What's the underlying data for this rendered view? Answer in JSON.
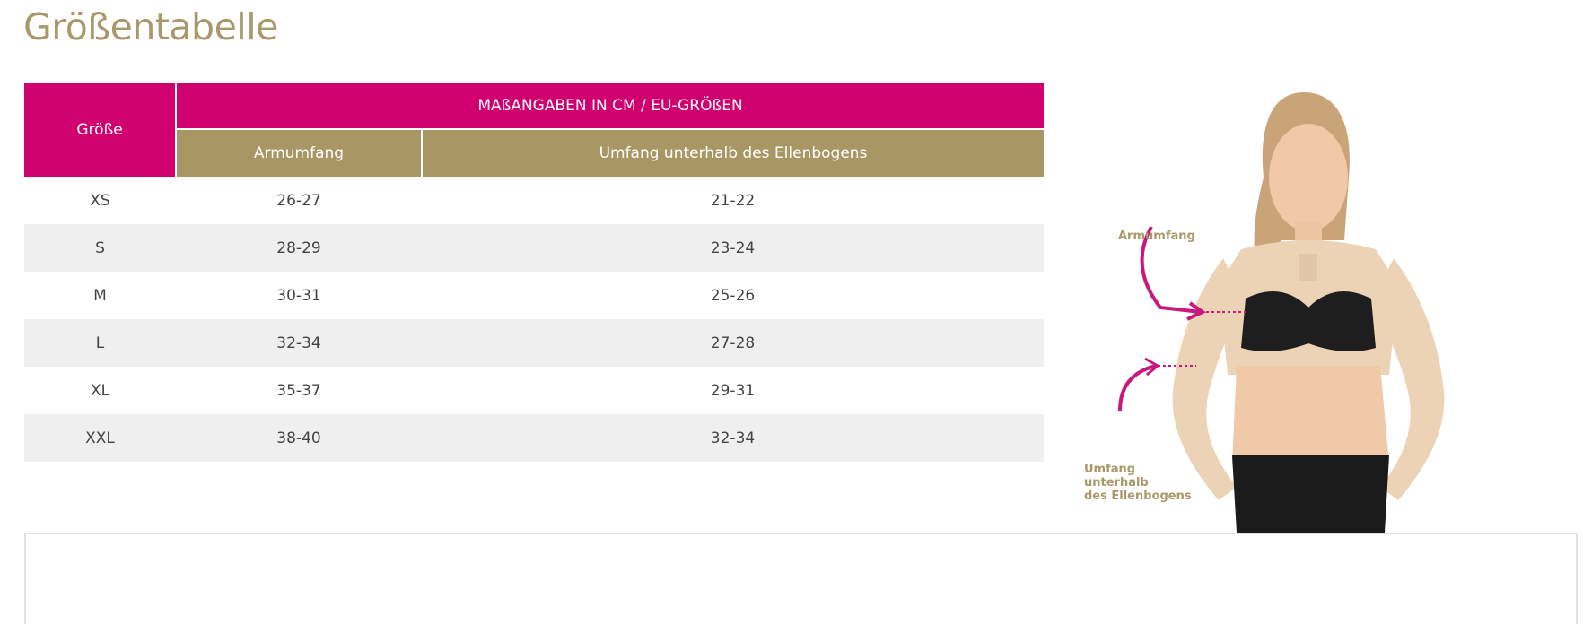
{
  "page": {
    "title": "Größentabelle"
  },
  "table": {
    "size_header": "Größe",
    "group_header": "MAßANGABEN IN CM / EU-GRÖßEN",
    "columns": [
      "Armumfang",
      "Umfang unterhalb des Ellenbogens"
    ],
    "rows": [
      {
        "size": "XS",
        "arm": "26-27",
        "below_elbow": "21-22"
      },
      {
        "size": "S",
        "arm": "28-29",
        "below_elbow": "23-24"
      },
      {
        "size": "M",
        "arm": "30-31",
        "below_elbow": "25-26"
      },
      {
        "size": "L",
        "arm": "32-34",
        "below_elbow": "27-28"
      },
      {
        "size": "XL",
        "arm": "35-37",
        "below_elbow": "29-31"
      },
      {
        "size": "XXL",
        "arm": "38-40",
        "below_elbow": "32-34"
      }
    ]
  },
  "figure": {
    "label_arm": "Armumfang",
    "label_below_elbow_lines": [
      "Umfang",
      "unterhalb",
      "des Ellenbogens"
    ]
  },
  "colors": {
    "primary": "#d1006f",
    "secondary": "#a89765",
    "row_alt": "#efefef"
  }
}
